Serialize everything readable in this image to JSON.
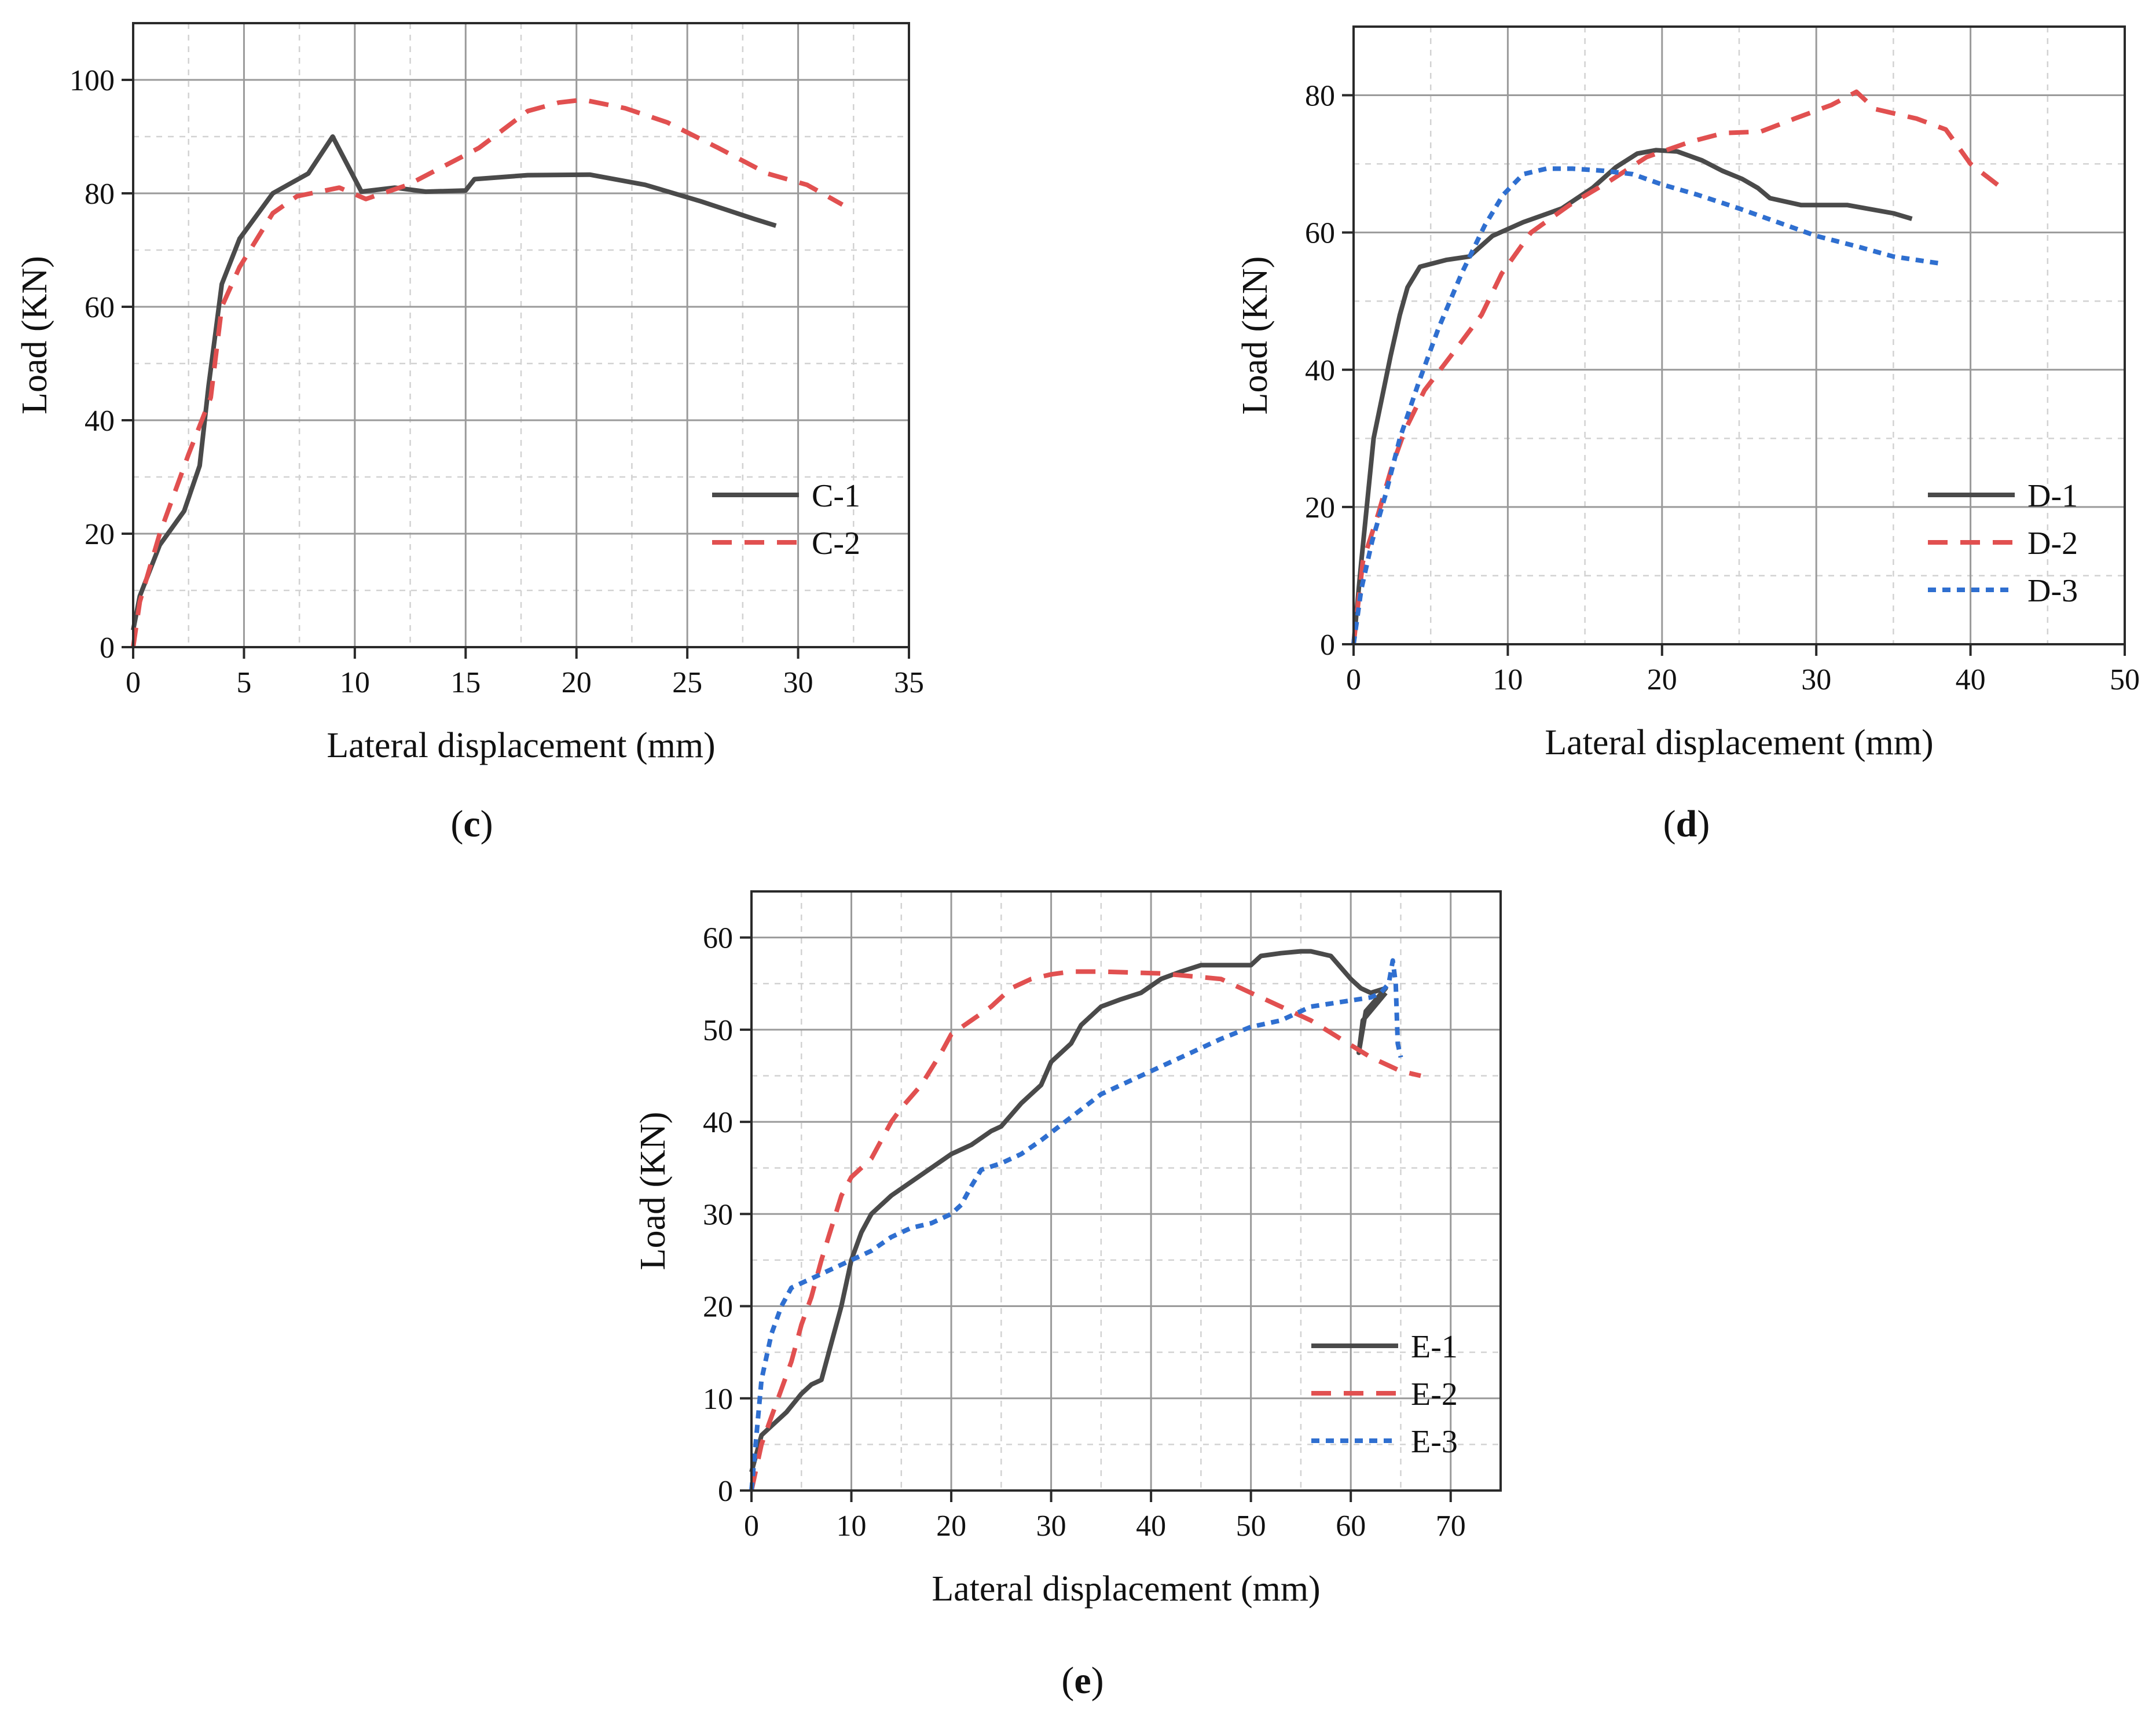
{
  "chart_data": [
    {
      "id": "c",
      "type": "line",
      "caption": "c",
      "xlabel": "Lateral displacement (mm)",
      "ylabel": "Load (KN)",
      "xlim": [
        0,
        35
      ],
      "ylim": [
        0,
        110
      ],
      "xticks": [
        0,
        5,
        10,
        15,
        20,
        25,
        30,
        35
      ],
      "yticks": [
        0,
        20,
        40,
        60,
        80,
        100
      ],
      "legend_position": "lower-right",
      "series": [
        {
          "name": "C-1",
          "color": "#4a4a4a",
          "style": "solid",
          "x": [
            0,
            0.3,
            1.2,
            2.3,
            3.0,
            3.4,
            3.7,
            4.0,
            4.8,
            6.3,
            7.9,
            9.0,
            10.3,
            11.8,
            13.2,
            15.0,
            15.4,
            17.8,
            20.6,
            23.1,
            25.6,
            28.0,
            29.0
          ],
          "y": [
            3,
            9,
            18,
            24,
            32,
            46,
            55,
            64,
            72,
            80,
            83.5,
            90,
            80.3,
            81,
            80.3,
            80.5,
            82.5,
            83.2,
            83.3,
            81.5,
            78.6,
            75.5,
            74.3
          ]
        },
        {
          "name": "C-2",
          "color": "#e15050",
          "style": "dashed",
          "x": [
            0,
            0.3,
            1.2,
            2.5,
            3.5,
            4.0,
            4.8,
            6.3,
            7.4,
            9.3,
            10.5,
            12.4,
            15.6,
            17.8,
            19.2,
            20.3,
            22.2,
            24.1,
            26.4,
            28.6,
            30.4,
            32.0
          ],
          "y": [
            0,
            8,
            20,
            34,
            44,
            60,
            67,
            76.5,
            79.5,
            81,
            79,
            81.5,
            88,
            94.5,
            96,
            96.5,
            95,
            92.5,
            88,
            83.5,
            81.5,
            78
          ]
        }
      ]
    },
    {
      "id": "d",
      "type": "line",
      "caption": "d",
      "xlabel": "Lateral displacement (mm)",
      "ylabel": "Load (KN)",
      "xlim": [
        0,
        50
      ],
      "ylim": [
        0,
        90
      ],
      "xticks": [
        0,
        10,
        20,
        30,
        40,
        50
      ],
      "yticks": [
        0,
        20,
        40,
        60,
        80
      ],
      "legend_position": "lower-right",
      "series": [
        {
          "name": "D-1",
          "color": "#4a4a4a",
          "style": "solid",
          "x": [
            0,
            0.5,
            1.3,
            2.4,
            3.0,
            3.5,
            4.3,
            6.0,
            7.5,
            9.0,
            11.0,
            13.5,
            15.5,
            17.0,
            18.4,
            19.6,
            21.0,
            22.6,
            23.9,
            25.2,
            26.2,
            27.0,
            29.0,
            32.0,
            35.0,
            36.2
          ],
          "y": [
            0,
            12,
            30,
            42,
            48,
            52,
            55,
            56,
            56.5,
            59.5,
            61.5,
            63.5,
            66.5,
            69.5,
            71.5,
            72,
            71.8,
            70.5,
            69,
            67.8,
            66.5,
            65,
            64,
            64,
            62.8,
            62
          ]
        },
        {
          "name": "D-2",
          "color": "#e15050",
          "style": "dashed",
          "x": [
            0,
            0.6,
            1.6,
            2.5,
            3.3,
            4.6,
            6.3,
            8.3,
            9.6,
            11.5,
            14.0,
            16.6,
            19.0,
            21.8,
            24.0,
            26.4,
            28.6,
            31.0,
            32.6,
            33.8,
            36.5,
            38.4,
            40.0,
            42.3
          ],
          "y": [
            0,
            12,
            19,
            26,
            31,
            37,
            42,
            48,
            54,
            60,
            64,
            67.5,
            71,
            73.2,
            74.5,
            74.7,
            76.6,
            78.6,
            80.5,
            78,
            76.6,
            75,
            70,
            66
          ]
        },
        {
          "name": "D-3",
          "color": "#2f6fd0",
          "style": "dotted",
          "x": [
            0,
            0.5,
            1.2,
            2.1,
            3.0,
            4.2,
            5.5,
            7.0,
            8.5,
            9.7,
            11.0,
            12.5,
            14.2,
            16.2,
            18.1,
            20.0,
            22.3,
            25.0,
            27.5,
            30.0,
            32.6,
            35.0,
            38.0
          ],
          "y": [
            0,
            8,
            15,
            22,
            30,
            38,
            46,
            54,
            61,
            65.5,
            68.5,
            69.3,
            69.3,
            69,
            68.5,
            67,
            65.5,
            63.5,
            61.5,
            59.5,
            58,
            56.5,
            55.5
          ]
        }
      ]
    },
    {
      "id": "e",
      "type": "line",
      "caption": "e",
      "xlabel": "Lateral displacement (mm)",
      "ylabel": "Load (KN)",
      "xlim": [
        0,
        75
      ],
      "ylim": [
        0,
        65
      ],
      "xticks": [
        0,
        10,
        20,
        30,
        40,
        50,
        60,
        70
      ],
      "yticks": [
        0,
        10,
        20,
        30,
        40,
        50,
        60
      ],
      "legend_position": "lower-right",
      "series": [
        {
          "name": "E-1",
          "color": "#4a4a4a",
          "style": "solid",
          "x": [
            0,
            1,
            2,
            3.5,
            5,
            6,
            7,
            8,
            9,
            10,
            11,
            12,
            14,
            16,
            18,
            20,
            22,
            24,
            25,
            27,
            29,
            30,
            32,
            33,
            35,
            37,
            39,
            41,
            43,
            45,
            46,
            48,
            50,
            51,
            53,
            55,
            56,
            58,
            60,
            61,
            62,
            63.5,
            61.5,
            60.8,
            61.2,
            63.5
          ],
          "y": [
            2,
            6,
            7,
            8.5,
            10.5,
            11.5,
            12,
            16,
            20,
            25,
            28,
            30,
            32,
            33.5,
            35,
            36.5,
            37.5,
            39,
            39.5,
            42,
            44,
            46.5,
            48.5,
            50.5,
            52.5,
            53.3,
            54,
            55.5,
            56.3,
            57,
            57,
            57,
            57,
            58,
            58.3,
            58.5,
            58.5,
            58,
            55.5,
            54.5,
            54,
            54.5,
            52,
            47.5,
            51,
            54
          ]
        },
        {
          "name": "E-2",
          "color": "#e15050",
          "style": "dashed",
          "x": [
            0,
            1,
            2,
            3,
            4,
            5,
            6,
            7,
            8,
            9,
            10,
            12,
            14,
            15,
            17,
            19,
            20,
            22,
            24,
            26,
            28,
            30,
            32,
            35,
            38,
            41,
            44,
            47,
            50,
            53,
            56,
            59,
            62,
            65,
            67
          ],
          "y": [
            0,
            5,
            8,
            11,
            14,
            18,
            21,
            25,
            28.5,
            32,
            34,
            36,
            40,
            41.5,
            44,
            47.5,
            49.5,
            51,
            52.5,
            54.5,
            55.5,
            56,
            56.3,
            56.3,
            56.2,
            56.1,
            55.8,
            55.5,
            54,
            52.5,
            51,
            49,
            47,
            45.5,
            45
          ]
        },
        {
          "name": "E-3",
          "color": "#2f6fd0",
          "style": "dotted",
          "x": [
            0,
            0.5,
            1,
            2,
            3,
            4,
            6,
            8,
            10,
            12,
            14,
            16,
            18,
            20,
            21,
            22,
            23,
            25,
            27,
            29,
            32,
            35,
            38,
            41,
            44,
            47,
            50,
            53,
            56,
            59,
            62,
            63,
            63.8,
            64.2,
            64.5,
            64.7,
            65
          ],
          "y": [
            0,
            6,
            12,
            17,
            20,
            22,
            23,
            24,
            25,
            26,
            27.5,
            28.5,
            29,
            30,
            31,
            33,
            34.8,
            35.5,
            36.5,
            38,
            40.5,
            43,
            44.5,
            46,
            47.5,
            49,
            50.3,
            51,
            52.5,
            53,
            53.5,
            54,
            55,
            57.5,
            55,
            48.5,
            47
          ]
        }
      ]
    }
  ]
}
